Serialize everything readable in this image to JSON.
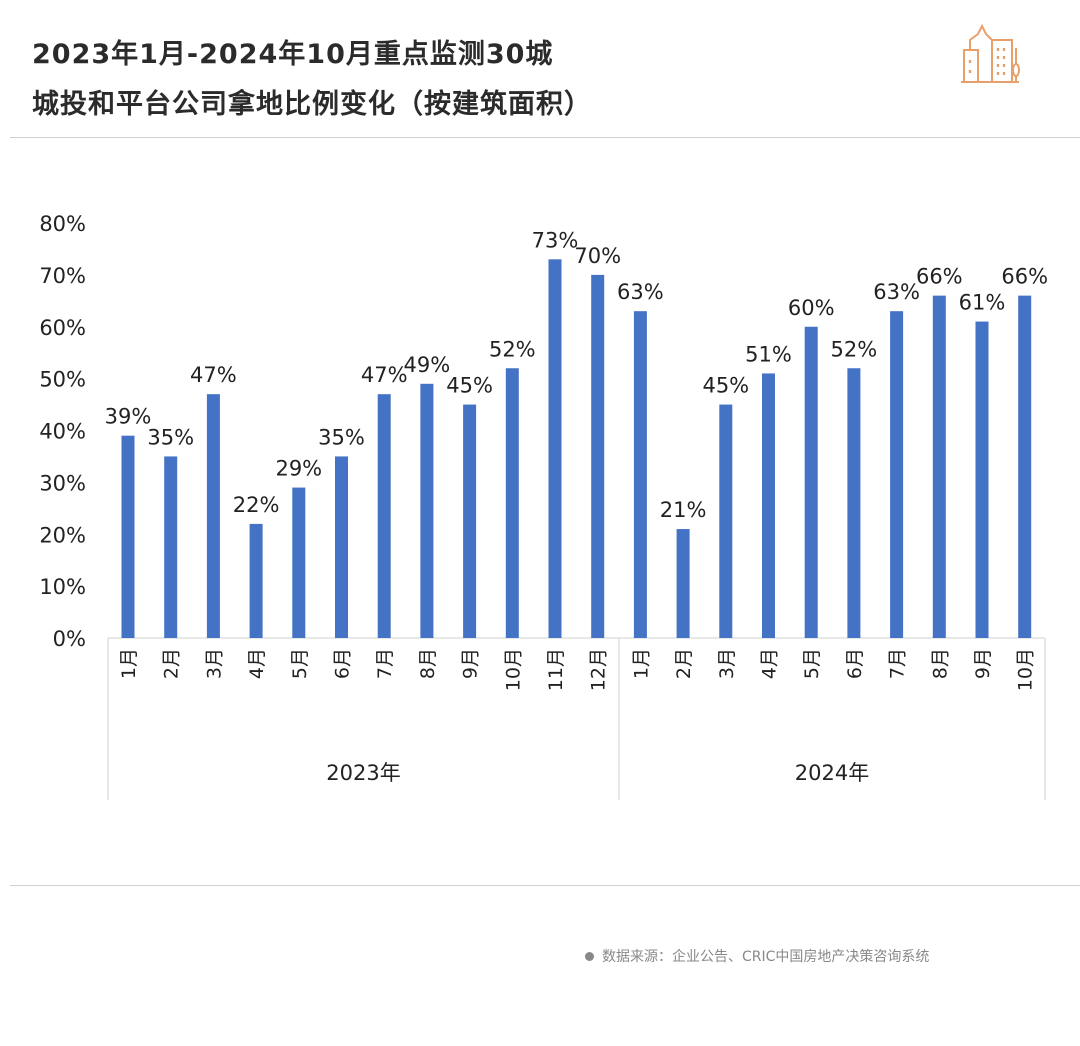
{
  "title_line1": "2023年1月-2024年10月重点监测30城",
  "title_line2": "城投和平台公司拿地比例变化（按建筑面积）",
  "source": "数据来源：企业公告、CRIC中国房地产决策咨询系统",
  "colors": {
    "bar": "#4472C4",
    "logo": "#E8A06A"
  },
  "chart_data": {
    "type": "bar",
    "title": "2023年1月-2024年10月重点监测30城城投和平台公司拿地比例变化（按建筑面积）",
    "groups": [
      {
        "label": "2023年",
        "categories": [
          "1月",
          "2月",
          "3月",
          "4月",
          "5月",
          "6月",
          "7月",
          "8月",
          "9月",
          "10月",
          "11月",
          "12月"
        ],
        "values": [
          39,
          35,
          47,
          22,
          29,
          35,
          47,
          49,
          45,
          52,
          73,
          70
        ]
      },
      {
        "label": "2024年",
        "categories": [
          "1月",
          "2月",
          "3月",
          "4月",
          "5月",
          "6月",
          "7月",
          "8月",
          "9月",
          "10月"
        ],
        "values": [
          63,
          21,
          45,
          51,
          60,
          52,
          63,
          66,
          61,
          66
        ]
      }
    ],
    "value_suffix": "%",
    "yticks": [
      "0%",
      "10%",
      "20%",
      "30%",
      "40%",
      "50%",
      "60%",
      "70%",
      "80%"
    ],
    "ylim": [
      0,
      80
    ],
    "grid": false,
    "legend": "none"
  }
}
